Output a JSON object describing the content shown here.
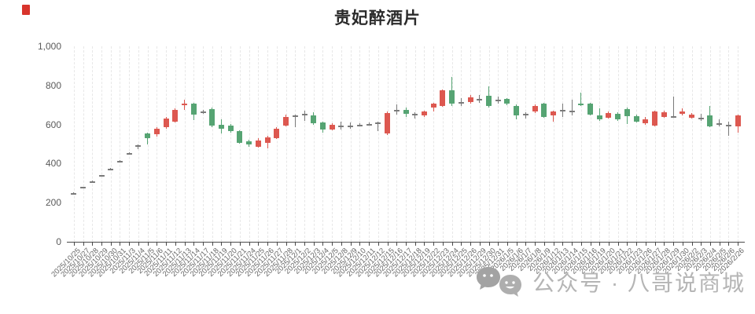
{
  "title": "贵妃醉酒片",
  "watermark": {
    "text": "公众号 · 八哥说商城",
    "icons": [
      "chat-bubble-face-icon",
      "chat-bubble-face-icon"
    ]
  },
  "colors": {
    "up": "#dd5850",
    "down": "#56a473",
    "flat": "#7a7a7a",
    "axis": "#4a4a4a",
    "tick_label": "#666666",
    "grid": "#e7e7e7",
    "watermark": "#b5b5b5",
    "corner_mark": "#d8342c"
  },
  "chart_data": {
    "type": "candlestick",
    "title": "贵妃醉酒片",
    "xlabel": "",
    "ylabel": "",
    "ylim": [
      0,
      1000
    ],
    "yticks": [
      0,
      200,
      400,
      600,
      800,
      1000
    ],
    "ytick_labels": [
      "0",
      "200",
      "400",
      "600",
      "800",
      "1,000"
    ],
    "grid": "vertical-dashed",
    "legend": "none",
    "up_color_rule": "close>open red, close<open green, equal gray",
    "x": [
      "2025/10/25",
      "2025/10/27",
      "2025/10/28",
      "2025/10/29",
      "2025/10/30",
      "2025/10/31",
      "2025/11/3",
      "2025/11/4",
      "2025/11/5",
      "2025/11/6",
      "2025/11/11",
      "2025/11/12",
      "2025/11/13",
      "2025/11/14",
      "2025/11/17",
      "2025/11/18",
      "2025/11/19",
      "2025/11/20",
      "2025/11/21",
      "2025/11/24",
      "2025/11/25",
      "2025/11/26",
      "2025/11/27",
      "2025/11/28",
      "2025/12/1",
      "2025/12/2",
      "2025/12/3",
      "2025/12/4",
      "2025/12/5",
      "2025/12/8",
      "2025/12/9",
      "2025/12/10",
      "2025/12/11",
      "2025/12/12",
      "2025/12/15",
      "2025/12/16",
      "2025/12/17",
      "2025/12/18",
      "2025/12/19",
      "2025/12/22",
      "2025/12/23",
      "2025/12/24",
      "2025/12/25",
      "2025/12/26",
      "2025/12/29",
      "2025/12/30",
      "2025/12/31",
      "2026/1/5",
      "2026/1/6",
      "2026/1/7",
      "2026/1/8",
      "2026/1/9",
      "2026/1/12",
      "2026/1/13",
      "2026/1/14",
      "2026/1/15",
      "2026/1/16",
      "2026/1/19",
      "2026/1/20",
      "2026/1/21",
      "2026/1/22",
      "2026/1/23",
      "2026/1/26",
      "2026/1/27",
      "2026/1/28",
      "2026/1/29",
      "2026/1/30",
      "2026/2/2",
      "2026/2/3",
      "2026/2/4",
      "2026/2/5",
      "2026/2/6",
      "2026/2/26"
    ],
    "ohlc_order": [
      "open",
      "close",
      "low",
      "high"
    ],
    "ohlc": [
      [
        250,
        250,
        247,
        253
      ],
      [
        280,
        280,
        277,
        283
      ],
      [
        310,
        310,
        307,
        313
      ],
      [
        340,
        340,
        337,
        343
      ],
      [
        375,
        375,
        372,
        378
      ],
      [
        415,
        415,
        412,
        418
      ],
      [
        455,
        455,
        452,
        458
      ],
      [
        495,
        495,
        473,
        497
      ],
      [
        555,
        530,
        496,
        557
      ],
      [
        550,
        578,
        540,
        586
      ],
      [
        585,
        632,
        580,
        640
      ],
      [
        615,
        675,
        610,
        682
      ],
      [
        698,
        706,
        676,
        726
      ],
      [
        706,
        650,
        622,
        712
      ],
      [
        665,
        665,
        654,
        676
      ],
      [
        680,
        596,
        586,
        686
      ],
      [
        600,
        580,
        556,
        626
      ],
      [
        596,
        566,
        560,
        601
      ],
      [
        566,
        506,
        500,
        570
      ],
      [
        516,
        496,
        486,
        521
      ],
      [
        486,
        520,
        480,
        530
      ],
      [
        506,
        536,
        476,
        541
      ],
      [
        530,
        580,
        526,
        586
      ],
      [
        596,
        640,
        590,
        650
      ],
      [
        645,
        645,
        586,
        651
      ],
      [
        655,
        655,
        620,
        671
      ],
      [
        645,
        606,
        600,
        661
      ],
      [
        610,
        576,
        560,
        616
      ],
      [
        576,
        600,
        570,
        606
      ],
      [
        595,
        595,
        576,
        615
      ],
      [
        596,
        596,
        580,
        611
      ],
      [
        600,
        600,
        590,
        607
      ],
      [
        603,
        603,
        596,
        611
      ],
      [
        610,
        610,
        565,
        616
      ],
      [
        556,
        660,
        546,
        666
      ],
      [
        675,
        675,
        650,
        701
      ],
      [
        675,
        655,
        640,
        686
      ],
      [
        655,
        655,
        630,
        661
      ],
      [
        646,
        666,
        640,
        671
      ],
      [
        685,
        706,
        665,
        711
      ],
      [
        695,
        775,
        690,
        781
      ],
      [
        775,
        706,
        696,
        845
      ],
      [
        715,
        715,
        695,
        736
      ],
      [
        716,
        740,
        706,
        751
      ],
      [
        730,
        730,
        710,
        751
      ],
      [
        745,
        696,
        686,
        796
      ],
      [
        725,
        725,
        706,
        741
      ],
      [
        730,
        706,
        700,
        736
      ],
      [
        695,
        646,
        626,
        701
      ],
      [
        655,
        655,
        630,
        661
      ],
      [
        665,
        695,
        660,
        701
      ],
      [
        705,
        640,
        635,
        711
      ],
      [
        645,
        665,
        615,
        671
      ],
      [
        675,
        675,
        640,
        706
      ],
      [
        670,
        670,
        645,
        726
      ],
      [
        706,
        701,
        696,
        763
      ],
      [
        705,
        650,
        645,
        711
      ],
      [
        647,
        627,
        620,
        683
      ],
      [
        635,
        659,
        630,
        666
      ],
      [
        655,
        627,
        620,
        661
      ],
      [
        679,
        643,
        602,
        686
      ],
      [
        643,
        615,
        610,
        649
      ],
      [
        607,
        627,
        597,
        637
      ],
      [
        594,
        667,
        590,
        672
      ],
      [
        639,
        663,
        635,
        669
      ],
      [
        643,
        643,
        633,
        743
      ],
      [
        655,
        665,
        645,
        681
      ],
      [
        636,
        650,
        630,
        657
      ],
      [
        635,
        635,
        618,
        656
      ],
      [
        645,
        590,
        585,
        695
      ],
      [
        607,
        607,
        590,
        626
      ],
      [
        598,
        598,
        541,
        616
      ],
      [
        590,
        645,
        560,
        651
      ]
    ]
  }
}
